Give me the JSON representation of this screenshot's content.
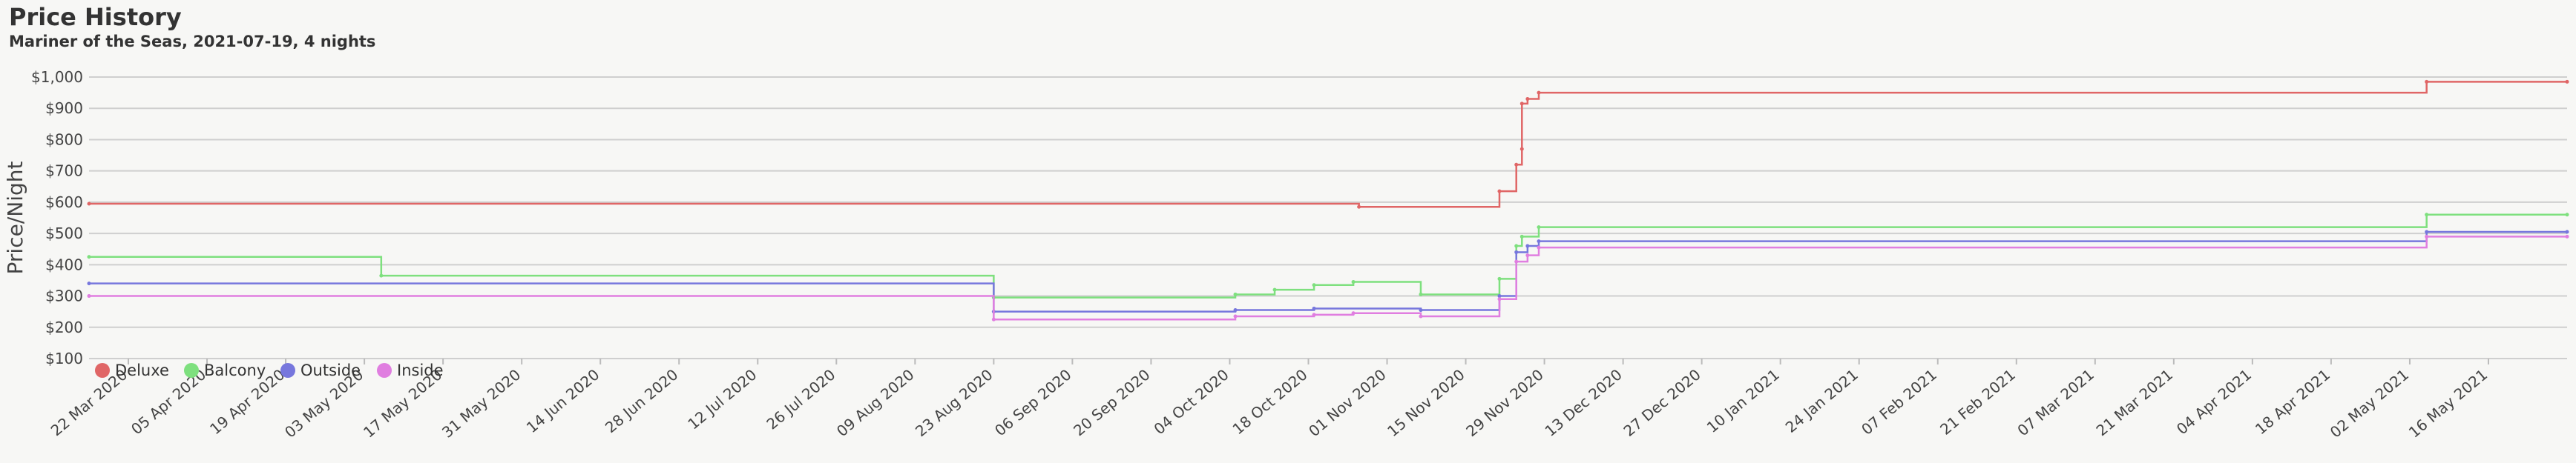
{
  "header": {
    "title": "Price History",
    "subtitle": "Mariner of the Seas, 2021-07-19, 4 nights"
  },
  "chart_data": {
    "type": "line",
    "title": "Price History",
    "subtitle": "Mariner of the Seas, 2021-07-19, 4 nights",
    "xlabel": "",
    "ylabel": "Price/Night",
    "ylim": [
      100,
      1000
    ],
    "xlim": [
      "2020-03-15",
      "2021-05-30"
    ],
    "step": true,
    "grid": true,
    "legend_position": "bottom-left",
    "y_ticks": [
      "$1,000",
      "$900",
      "$800",
      "$700",
      "$600",
      "$500",
      "$400",
      "$300",
      "$200",
      "$100"
    ],
    "x_ticks": [
      "22 Mar 2020",
      "05 Apr 2020",
      "19 Apr 2020",
      "03 May 2020",
      "17 May 2020",
      "31 May 2020",
      "14 Jun 2020",
      "28 Jun 2020",
      "12 Jul 2020",
      "26 Jul 2020",
      "09 Aug 2020",
      "23 Aug 2020",
      "06 Sep 2020",
      "20 Sep 2020",
      "04 Oct 2020",
      "18 Oct 2020",
      "01 Nov 2020",
      "15 Nov 2020",
      "29 Nov 2020",
      "13 Dec 2020",
      "27 Dec 2020",
      "10 Jan 2021",
      "24 Jan 2021",
      "07 Feb 2021",
      "21 Feb 2021",
      "07 Mar 2021",
      "21 Mar 2021",
      "04 Apr 2021",
      "18 Apr 2021",
      "02 May 2021",
      "16 May 2021"
    ],
    "series": [
      {
        "name": "Deluxe",
        "color": "#e06666",
        "points": [
          [
            "2020-03-15",
            595
          ],
          [
            "2020-10-27",
            585
          ],
          [
            "2020-11-21",
            635
          ],
          [
            "2020-11-24",
            720
          ],
          [
            "2020-11-25",
            770
          ],
          [
            "2020-11-25",
            915
          ],
          [
            "2020-11-26",
            930
          ],
          [
            "2020-11-28",
            950
          ],
          [
            "2021-05-05",
            985
          ],
          [
            "2021-05-30",
            985
          ]
        ]
      },
      {
        "name": "Balcony",
        "color": "#7ee07e",
        "points": [
          [
            "2020-03-15",
            425
          ],
          [
            "2020-05-06",
            365
          ],
          [
            "2020-08-23",
            295
          ],
          [
            "2020-10-05",
            305
          ],
          [
            "2020-10-12",
            320
          ],
          [
            "2020-10-19",
            335
          ],
          [
            "2020-10-26",
            345
          ],
          [
            "2020-11-07",
            305
          ],
          [
            "2020-11-21",
            355
          ],
          [
            "2020-11-24",
            460
          ],
          [
            "2020-11-25",
            490
          ],
          [
            "2020-11-28",
            520
          ],
          [
            "2021-05-05",
            560
          ],
          [
            "2021-05-30",
            560
          ]
        ]
      },
      {
        "name": "Outside",
        "color": "#7777dd",
        "points": [
          [
            "2020-03-15",
            340
          ],
          [
            "2020-08-23",
            250
          ],
          [
            "2020-10-05",
            255
          ],
          [
            "2020-10-19",
            260
          ],
          [
            "2020-11-07",
            255
          ],
          [
            "2020-11-21",
            300
          ],
          [
            "2020-11-24",
            440
          ],
          [
            "2020-11-26",
            460
          ],
          [
            "2020-11-28",
            475
          ],
          [
            "2021-05-05",
            505
          ],
          [
            "2021-05-30",
            505
          ]
        ]
      },
      {
        "name": "Inside",
        "color": "#e07ee0",
        "points": [
          [
            "2020-03-15",
            300
          ],
          [
            "2020-08-23",
            225
          ],
          [
            "2020-10-05",
            235
          ],
          [
            "2020-10-19",
            240
          ],
          [
            "2020-10-26",
            245
          ],
          [
            "2020-11-07",
            235
          ],
          [
            "2020-11-21",
            290
          ],
          [
            "2020-11-24",
            410
          ],
          [
            "2020-11-26",
            430
          ],
          [
            "2020-11-28",
            455
          ],
          [
            "2021-05-05",
            490
          ],
          [
            "2021-05-30",
            490
          ]
        ]
      }
    ]
  }
}
